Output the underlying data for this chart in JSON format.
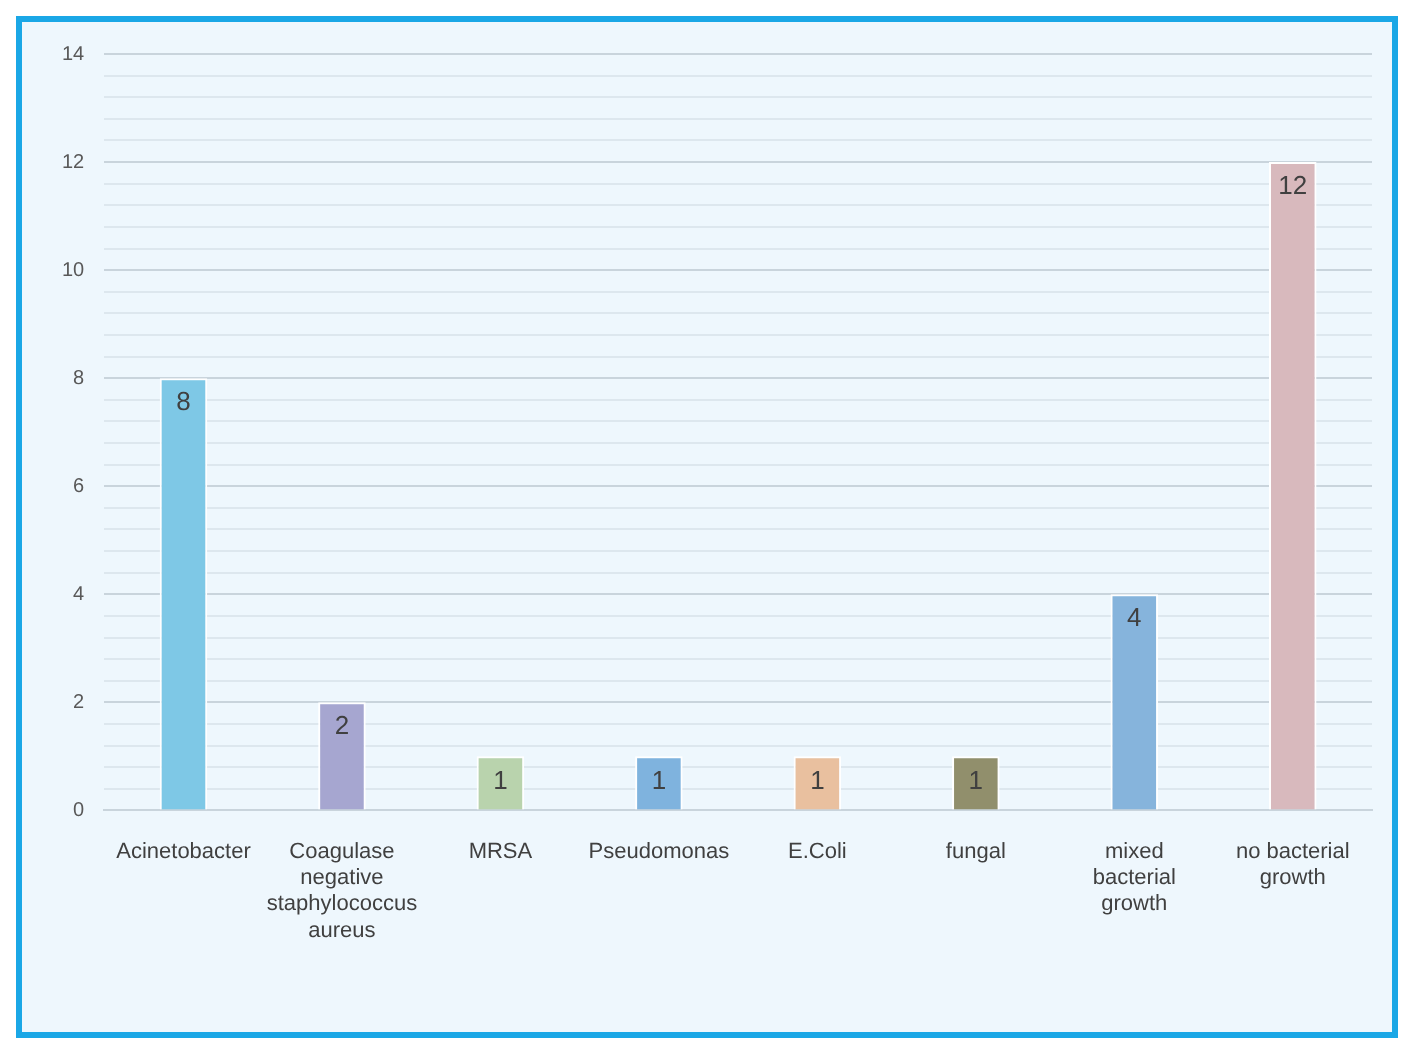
{
  "chart_data": {
    "type": "bar",
    "categories": [
      "Acinetobacter",
      "Coagulase negative staphylococcus aureus",
      "MRSA",
      "Pseudomonas",
      "E.Coli",
      "fungal",
      "mixed bacterial growth",
      "no bacterial growth"
    ],
    "values": [
      8,
      2,
      1,
      1,
      1,
      1,
      4,
      12
    ],
    "colors": [
      "#7ec8e6",
      "#a6a6d0",
      "#b9d3ad",
      "#7fb3de",
      "#e9c09f",
      "#918f6c",
      "#86b4dc",
      "#d8b9bd"
    ],
    "ylim": [
      0,
      14
    ],
    "yticks": [
      0,
      {
        "value": 0.4,
        "label": null
      },
      {
        "value": 0.8,
        "label": null
      },
      {
        "value": 1.2,
        "label": null
      },
      {
        "value": 1.6,
        "label": null
      },
      2,
      {
        "value": 2.4,
        "label": null
      },
      {
        "value": 2.8,
        "label": null
      },
      {
        "value": 3.2,
        "label": null
      },
      {
        "value": 3.6,
        "label": null
      },
      4,
      {
        "value": 4.4,
        "label": null
      },
      {
        "value": 4.8,
        "label": null
      },
      {
        "value": 5.2,
        "label": null
      },
      {
        "value": 5.6,
        "label": null
      },
      6,
      {
        "value": 6.4,
        "label": null
      },
      {
        "value": 6.8,
        "label": null
      },
      {
        "value": 7.2,
        "label": null
      },
      {
        "value": 7.6,
        "label": null
      },
      8,
      {
        "value": 8.4,
        "label": null
      },
      {
        "value": 8.8,
        "label": null
      },
      {
        "value": 9.2,
        "label": null
      },
      {
        "value": 9.6,
        "label": null
      },
      10,
      {
        "value": 10.4,
        "label": null
      },
      {
        "value": 10.8,
        "label": null
      },
      {
        "value": 11.2,
        "label": null
      },
      {
        "value": 11.6,
        "label": null
      },
      12,
      {
        "value": 12.4,
        "label": null
      },
      {
        "value": 12.8,
        "label": null
      },
      {
        "value": 13.2,
        "label": null
      },
      {
        "value": 13.6,
        "label": null
      },
      14
    ],
    "grid": "y",
    "data_labels": true,
    "legend": false
  }
}
